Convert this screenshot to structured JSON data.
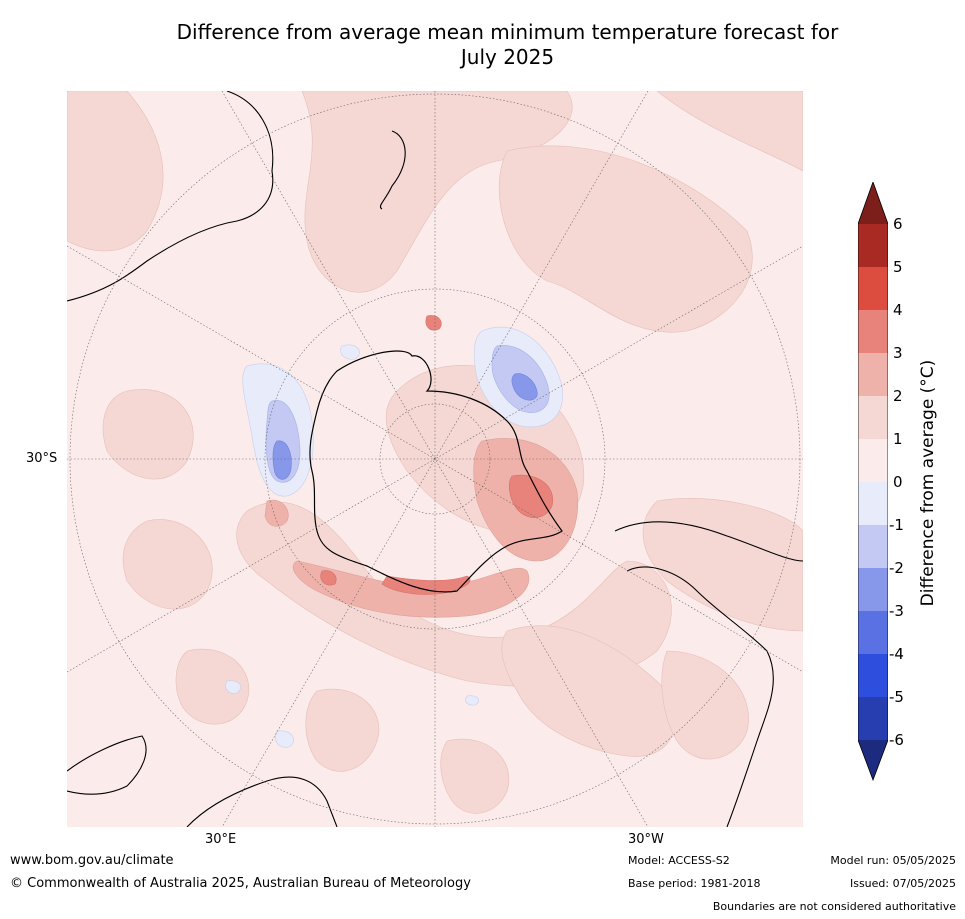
{
  "title_line1": "Difference from average mean minimum temperature forecast for",
  "title_line2": "July 2025",
  "map": {
    "projection": "south-polar-stereographic",
    "lat_label": "30°S",
    "lon_labels": [
      "30°E",
      "30°W"
    ],
    "background_color": "#fbeceb"
  },
  "colorbar": {
    "title": "Difference from average (°C)",
    "ticks": [
      "6",
      "5",
      "4",
      "3",
      "2",
      "1",
      "0",
      "-1",
      "-2",
      "-3",
      "-4",
      "-5",
      "-6"
    ],
    "levels": [
      {
        "range": [
          5,
          6
        ],
        "color": "#a82a22"
      },
      {
        "range": [
          4,
          5
        ],
        "color": "#dc4c3f"
      },
      {
        "range": [
          3,
          4
        ],
        "color": "#e8837b"
      },
      {
        "range": [
          2,
          3
        ],
        "color": "#efb2aa"
      },
      {
        "range": [
          1,
          2
        ],
        "color": "#f5d7d3"
      },
      {
        "range": [
          0,
          1
        ],
        "color": "#fbeceb"
      },
      {
        "range": [
          -1,
          0
        ],
        "color": "#e8ebfa"
      },
      {
        "range": [
          -2,
          -1
        ],
        "color": "#c3c9f2"
      },
      {
        "range": [
          -3,
          -2
        ],
        "color": "#8797ea"
      },
      {
        "range": [
          -4,
          -3
        ],
        "color": "#5a71e3"
      },
      {
        "range": [
          -5,
          -4
        ],
        "color": "#2e4fde"
      },
      {
        "range": [
          -6,
          -5
        ],
        "color": "#263eaf"
      }
    ],
    "over_color": "#7c1f1a",
    "under_color": "#1c2b7f"
  },
  "footer": {
    "website": "www.bom.gov.au/climate",
    "copyright": "© Commonwealth of Australia 2025, Australian Bureau of Meteorology",
    "model": "Model: ACCESS-S2",
    "base_period": "Base period: 1981-2018",
    "model_run": "Model run: 05/05/2025",
    "issued": "Issued: 07/05/2025",
    "disclaimer": "Boundaries are not considered authoritative"
  }
}
